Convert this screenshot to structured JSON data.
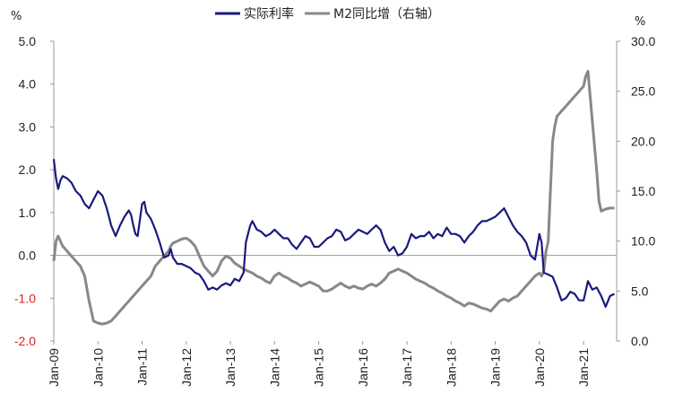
{
  "chart_data": {
    "type": "line",
    "legend": {
      "placement": "top-center",
      "entries": [
        {
          "label": "实际利率",
          "color": "#1a1a7e"
        },
        {
          "label": "M2同比增（右轴）",
          "color": "#888888"
        }
      ]
    },
    "left_axis": {
      "unit": "%",
      "ylim": [
        -2.0,
        5.0
      ],
      "ticks": [
        "5.0",
        "4.0",
        "3.0",
        "2.0",
        "1.0",
        "0.0",
        "-1.0",
        "-2.0"
      ],
      "tick_values": [
        5,
        4,
        3,
        2,
        1,
        0,
        -1,
        -2
      ],
      "negative_tick_color": "#e02020"
    },
    "right_axis": {
      "unit": "%",
      "ylim": [
        0.0,
        30.0
      ],
      "ticks": [
        "30.0",
        "25.0",
        "20.0",
        "15.0",
        "10.0",
        "5.0",
        "0.0"
      ],
      "tick_values": [
        30,
        25,
        20,
        15,
        10,
        5,
        0
      ]
    },
    "x_axis": {
      "range": [
        2009.0,
        2021.75
      ],
      "ticks": [
        "Jan-09",
        "Jan-10",
        "Jan-11",
        "Jan-12",
        "Jan-13",
        "Jan-14",
        "Jan-15",
        "Jan-16",
        "Jan-17",
        "Jan-18",
        "Jan-19",
        "Jan-20",
        "Jan-21"
      ],
      "tick_values": [
        2009,
        2010,
        2011,
        2012,
        2013,
        2014,
        2015,
        2016,
        2017,
        2018,
        2019,
        2020,
        2021
      ]
    },
    "zero_line": true,
    "grid": false,
    "series": [
      {
        "name": "实际利率",
        "axis": "left",
        "color": "#1a1a7e",
        "x": [
          2009.0,
          2009.05,
          2009.1,
          2009.15,
          2009.2,
          2009.3,
          2009.4,
          2009.5,
          2009.6,
          2009.7,
          2009.8,
          2009.9,
          2010.0,
          2010.1,
          2010.2,
          2010.25,
          2010.3,
          2010.4,
          2010.5,
          2010.6,
          2010.7,
          2010.75,
          2010.8,
          2010.85,
          2010.9,
          2011.0,
          2011.05,
          2011.1,
          2011.2,
          2011.3,
          2011.4,
          2011.5,
          2011.6,
          2011.65,
          2011.7,
          2011.8,
          2011.9,
          2012.0,
          2012.1,
          2012.2,
          2012.3,
          2012.4,
          2012.5,
          2012.6,
          2012.7,
          2012.8,
          2012.9,
          2013.0,
          2013.1,
          2013.2,
          2013.3,
          2013.35,
          2013.4,
          2013.45,
          2013.5,
          2013.6,
          2013.7,
          2013.8,
          2013.9,
          2014.0,
          2014.1,
          2014.2,
          2014.3,
          2014.4,
          2014.5,
          2014.6,
          2014.7,
          2014.8,
          2014.9,
          2015.0,
          2015.1,
          2015.2,
          2015.3,
          2015.4,
          2015.5,
          2015.6,
          2015.7,
          2015.8,
          2015.9,
          2016.0,
          2016.1,
          2016.2,
          2016.3,
          2016.4,
          2016.5,
          2016.6,
          2016.7,
          2016.8,
          2016.9,
          2017.0,
          2017.1,
          2017.2,
          2017.3,
          2017.4,
          2017.5,
          2017.6,
          2017.7,
          2017.8,
          2017.9,
          2018.0,
          2018.1,
          2018.2,
          2018.3,
          2018.4,
          2018.5,
          2018.6,
          2018.7,
          2018.8,
          2018.9,
          2019.0,
          2019.1,
          2019.2,
          2019.3,
          2019.4,
          2019.5,
          2019.6,
          2019.7,
          2019.8,
          2019.9,
          2020.0,
          2020.05,
          2020.1,
          2020.2,
          2020.3,
          2020.4,
          2020.5,
          2020.6,
          2020.7,
          2020.8,
          2020.9,
          2021.0,
          2021.1,
          2021.2,
          2021.3,
          2021.4,
          2021.5,
          2021.6,
          2021.7
        ],
        "values": [
          2.25,
          1.8,
          1.55,
          1.75,
          1.85,
          1.8,
          1.7,
          1.5,
          1.4,
          1.2,
          1.1,
          1.3,
          1.5,
          1.4,
          1.1,
          0.9,
          0.7,
          0.45,
          0.7,
          0.9,
          1.05,
          0.95,
          0.7,
          0.5,
          0.45,
          1.2,
          1.25,
          1.0,
          0.85,
          0.6,
          0.3,
          -0.05,
          0.0,
          0.15,
          -0.05,
          -0.2,
          -0.2,
          -0.25,
          -0.3,
          -0.4,
          -0.45,
          -0.6,
          -0.8,
          -0.75,
          -0.8,
          -0.7,
          -0.65,
          -0.7,
          -0.55,
          -0.6,
          -0.4,
          0.3,
          0.5,
          0.7,
          0.8,
          0.6,
          0.55,
          0.45,
          0.5,
          0.6,
          0.5,
          0.4,
          0.4,
          0.25,
          0.15,
          0.3,
          0.45,
          0.4,
          0.2,
          0.2,
          0.3,
          0.4,
          0.45,
          0.6,
          0.55,
          0.35,
          0.4,
          0.5,
          0.6,
          0.55,
          0.5,
          0.6,
          0.7,
          0.6,
          0.3,
          0.1,
          0.2,
          0.0,
          0.05,
          0.2,
          0.5,
          0.4,
          0.45,
          0.45,
          0.55,
          0.4,
          0.5,
          0.45,
          0.65,
          0.5,
          0.5,
          0.45,
          0.3,
          0.45,
          0.55,
          0.7,
          0.8,
          0.8,
          0.85,
          0.9,
          1.0,
          1.1,
          0.9,
          0.7,
          0.55,
          0.45,
          0.3,
          0.0,
          -0.1,
          0.5,
          0.3,
          -0.4,
          -0.45,
          -0.5,
          -0.75,
          -1.05,
          -1.0,
          -0.85,
          -0.9,
          -1.05,
          -1.05,
          -0.6,
          -0.8,
          -0.75,
          -0.95,
          -1.2,
          -0.95,
          -0.9
        ]
      },
      {
        "name": "M2同比增（右轴）",
        "axis": "right",
        "color": "#888888",
        "x": [
          2009.0,
          2009.05,
          2009.1,
          2009.15,
          2009.2,
          2009.3,
          2009.4,
          2009.5,
          2009.6,
          2009.7,
          2009.8,
          2009.85,
          2009.9,
          2010.0,
          2010.1,
          2010.2,
          2010.3,
          2010.4,
          2010.5,
          2010.6,
          2010.7,
          2010.8,
          2010.9,
          2011.0,
          2011.1,
          2011.2,
          2011.3,
          2011.4,
          2011.5,
          2011.6,
          2011.65,
          2011.7,
          2011.8,
          2011.9,
          2012.0,
          2012.1,
          2012.2,
          2012.3,
          2012.4,
          2012.5,
          2012.6,
          2012.7,
          2012.8,
          2012.9,
          2013.0,
          2013.1,
          2013.2,
          2013.3,
          2013.4,
          2013.5,
          2013.6,
          2013.7,
          2013.8,
          2013.9,
          2014.0,
          2014.1,
          2014.2,
          2014.3,
          2014.4,
          2014.5,
          2014.6,
          2014.7,
          2014.8,
          2014.9,
          2015.0,
          2015.1,
          2015.2,
          2015.3,
          2015.4,
          2015.5,
          2015.6,
          2015.7,
          2015.8,
          2015.9,
          2016.0,
          2016.1,
          2016.2,
          2016.3,
          2016.4,
          2016.5,
          2016.6,
          2016.7,
          2016.8,
          2016.9,
          2017.0,
          2017.1,
          2017.2,
          2017.3,
          2017.4,
          2017.5,
          2017.6,
          2017.7,
          2017.8,
          2017.9,
          2018.0,
          2018.1,
          2018.2,
          2018.3,
          2018.4,
          2018.5,
          2018.6,
          2018.7,
          2018.8,
          2018.9,
          2019.0,
          2019.1,
          2019.2,
          2019.3,
          2019.4,
          2019.5,
          2019.6,
          2019.7,
          2019.8,
          2019.9,
          2020.0,
          2020.05,
          2020.1,
          2020.15,
          2020.2,
          2020.25,
          2020.3,
          2020.35,
          2020.4,
          2020.5,
          2020.6,
          2020.7,
          2020.8,
          2020.9,
          2021.0,
          2021.05,
          2021.1,
          2021.2,
          2021.3,
          2021.35,
          2021.4,
          2021.5,
          2021.6,
          2021.7
        ],
        "values": [
          8.0,
          10.0,
          10.5,
          10.0,
          9.5,
          9.0,
          8.5,
          8.0,
          7.5,
          6.5,
          4.0,
          3.0,
          2.0,
          1.8,
          1.7,
          1.8,
          2.0,
          2.5,
          3.0,
          3.5,
          4.0,
          4.5,
          5.0,
          5.5,
          6.0,
          6.5,
          7.5,
          8.0,
          8.5,
          9.0,
          9.5,
          9.8,
          10.0,
          10.2,
          10.3,
          10.0,
          9.5,
          8.5,
          7.5,
          7.0,
          6.5,
          7.0,
          8.0,
          8.5,
          8.3,
          7.8,
          7.5,
          7.2,
          7.0,
          6.8,
          6.5,
          6.3,
          6.0,
          5.8,
          6.5,
          6.8,
          6.5,
          6.3,
          6.0,
          5.8,
          5.5,
          5.7,
          5.9,
          5.7,
          5.5,
          5.0,
          5.0,
          5.2,
          5.5,
          5.8,
          5.5,
          5.3,
          5.5,
          5.3,
          5.2,
          5.5,
          5.7,
          5.5,
          5.8,
          6.2,
          6.8,
          7.0,
          7.2,
          7.0,
          6.8,
          6.5,
          6.2,
          6.0,
          5.8,
          5.5,
          5.3,
          5.0,
          4.8,
          4.5,
          4.3,
          4.0,
          3.8,
          3.5,
          3.8,
          3.7,
          3.5,
          3.3,
          3.2,
          3.0,
          3.5,
          4.0,
          4.2,
          4.0,
          4.3,
          4.5,
          5.0,
          5.5,
          6.0,
          6.5,
          6.8,
          6.5,
          7.0,
          9.0,
          10.0,
          15.0,
          20.0,
          21.5,
          22.5,
          23.0,
          23.5,
          24.0,
          24.5,
          25.0,
          25.5,
          26.5,
          27.0,
          22.0,
          17.0,
          14.0,
          13.0,
          13.2,
          13.3,
          13.3
        ]
      }
    ]
  }
}
